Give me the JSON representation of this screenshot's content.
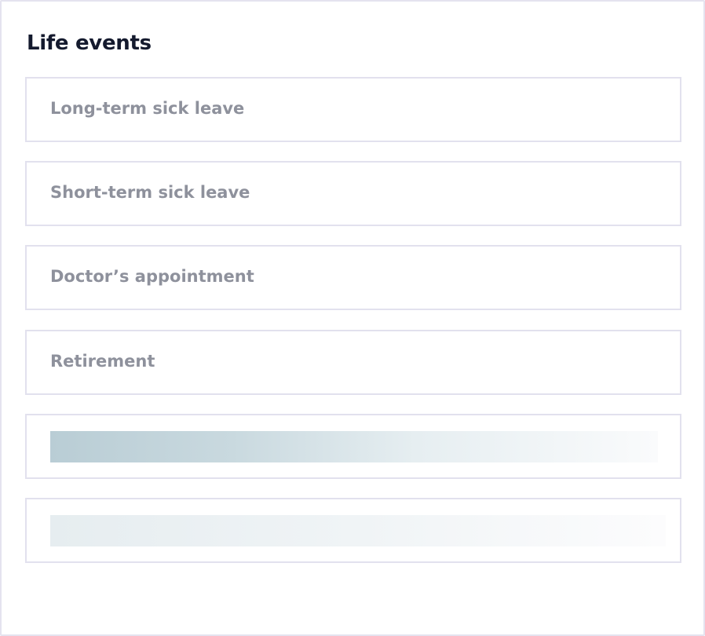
{
  "header": {
    "title": "Life events"
  },
  "items": [
    "Long-term sick leave",
    "Short-term sick leave",
    "Doctor’s appointment",
    "Retirement"
  ]
}
